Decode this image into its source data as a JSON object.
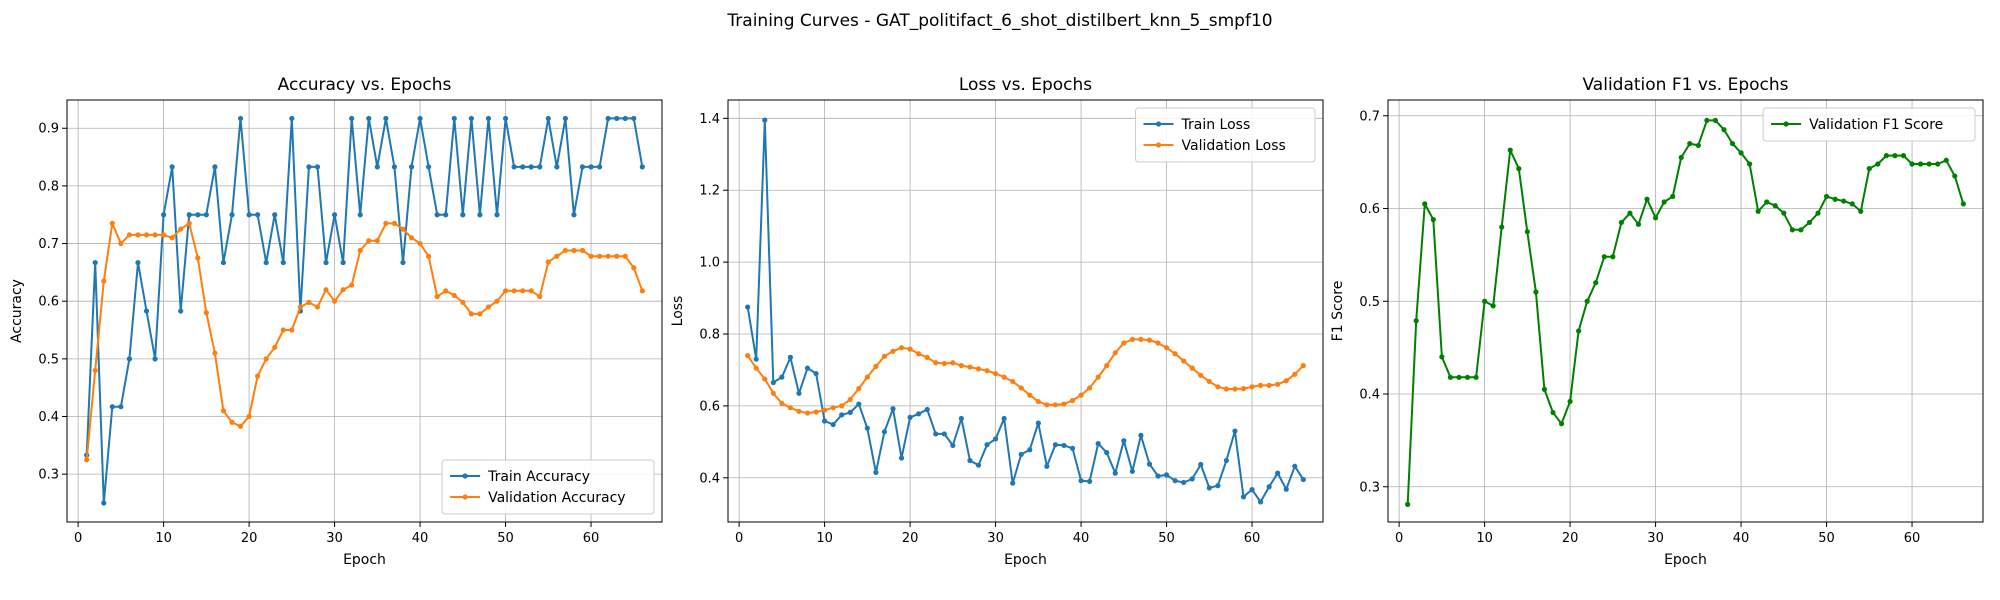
{
  "figure": {
    "title": "Training Curves - GAT_politifact_6_shot_distilbert_knn_5_smpf10"
  },
  "colors": {
    "train": "#1f77b4",
    "validation": "#ff7f0e",
    "f1": "#008000",
    "grid": "#b0b0b0"
  },
  "chart_data": [
    {
      "type": "line",
      "title": "Accuracy vs. Epochs",
      "xlabel": "Epoch",
      "ylabel": "Accuracy",
      "xlim": [
        -1.3,
        68.3
      ],
      "ylim": [
        0.217,
        0.949
      ],
      "xticks": [
        0,
        10,
        20,
        30,
        40,
        50,
        60
      ],
      "yticks": [
        0.3,
        0.4,
        0.5,
        0.6,
        0.7,
        0.8,
        0.9
      ],
      "grid": true,
      "legend": "lower right",
      "x": [
        1,
        2,
        3,
        4,
        5,
        6,
        7,
        8,
        9,
        10,
        11,
        12,
        13,
        14,
        15,
        16,
        17,
        18,
        19,
        20,
        21,
        22,
        23,
        24,
        25,
        26,
        27,
        28,
        29,
        30,
        31,
        32,
        33,
        34,
        35,
        36,
        37,
        38,
        39,
        40,
        41,
        42,
        43,
        44,
        45,
        46,
        47,
        48,
        49,
        50,
        51,
        52,
        53,
        54,
        55,
        56,
        57,
        58,
        59,
        60,
        61,
        62,
        63,
        64,
        65,
        66
      ],
      "series": [
        {
          "name": "Train Accuracy",
          "color": "#1f77b4",
          "values": [
            0.333,
            0.667,
            0.25,
            0.417,
            0.417,
            0.5,
            0.667,
            0.583,
            0.5,
            0.75,
            0.833,
            0.583,
            0.75,
            0.75,
            0.75,
            0.833,
            0.667,
            0.75,
            0.917,
            0.75,
            0.75,
            0.667,
            0.75,
            0.667,
            0.917,
            0.583,
            0.833,
            0.833,
            0.667,
            0.75,
            0.667,
            0.917,
            0.75,
            0.917,
            0.833,
            0.917,
            0.833,
            0.667,
            0.833,
            0.917,
            0.833,
            0.75,
            0.75,
            0.917,
            0.75,
            0.917,
            0.75,
            0.917,
            0.75,
            0.917,
            0.833,
            0.833,
            0.833,
            0.833,
            0.917,
            0.833,
            0.917,
            0.75,
            0.833,
            0.833,
            0.833,
            0.917,
            0.917,
            0.917,
            0.917,
            0.833
          ]
        },
        {
          "name": "Validation Accuracy",
          "color": "#ff7f0e",
          "values": [
            0.325,
            0.48,
            0.635,
            0.735,
            0.7,
            0.715,
            0.715,
            0.715,
            0.715,
            0.715,
            0.71,
            0.725,
            0.735,
            0.675,
            0.58,
            0.51,
            0.41,
            0.39,
            0.383,
            0.4,
            0.47,
            0.5,
            0.52,
            0.55,
            0.55,
            0.59,
            0.598,
            0.59,
            0.62,
            0.6,
            0.62,
            0.628,
            0.688,
            0.705,
            0.705,
            0.735,
            0.735,
            0.725,
            0.71,
            0.7,
            0.678,
            0.608,
            0.618,
            0.61,
            0.598,
            0.578,
            0.578,
            0.59,
            0.6,
            0.618,
            0.618,
            0.618,
            0.618,
            0.608,
            0.668,
            0.678,
            0.688,
            0.688,
            0.688,
            0.678,
            0.678,
            0.678,
            0.678,
            0.678,
            0.658,
            0.618
          ]
        }
      ]
    },
    {
      "type": "line",
      "title": "Loss vs. Epochs",
      "xlabel": "Epoch",
      "ylabel": "Loss",
      "xlim": [
        -1.3,
        68.3
      ],
      "ylim": [
        0.277,
        1.451
      ],
      "xticks": [
        0,
        10,
        20,
        30,
        40,
        50,
        60
      ],
      "yticks": [
        0.4,
        0.6,
        0.8,
        1.0,
        1.2,
        1.4
      ],
      "ytick_labels": [
        "0.4",
        "0.6",
        "0.8",
        "1.0",
        "1.2",
        "1.4"
      ],
      "grid": true,
      "legend": "upper right",
      "x": [
        1,
        2,
        3,
        4,
        5,
        6,
        7,
        8,
        9,
        10,
        11,
        12,
        13,
        14,
        15,
        16,
        17,
        18,
        19,
        20,
        21,
        22,
        23,
        24,
        25,
        26,
        27,
        28,
        29,
        30,
        31,
        32,
        33,
        34,
        35,
        36,
        37,
        38,
        39,
        40,
        41,
        42,
        43,
        44,
        45,
        46,
        47,
        48,
        49,
        50,
        51,
        52,
        53,
        54,
        55,
        56,
        57,
        58,
        59,
        60,
        61,
        62,
        63,
        64,
        65,
        66
      ],
      "series": [
        {
          "name": "Train Loss",
          "color": "#1f77b4",
          "values": [
            0.875,
            0.73,
            1.395,
            0.665,
            0.68,
            0.735,
            0.635,
            0.705,
            0.69,
            0.558,
            0.548,
            0.575,
            0.582,
            0.605,
            0.538,
            0.415,
            0.528,
            0.592,
            0.455,
            0.568,
            0.578,
            0.59,
            0.522,
            0.522,
            0.49,
            0.565,
            0.448,
            0.435,
            0.492,
            0.508,
            0.565,
            0.385,
            0.465,
            0.478,
            0.552,
            0.432,
            0.492,
            0.49,
            0.482,
            0.392,
            0.39,
            0.495,
            0.47,
            0.413,
            0.503,
            0.418,
            0.518,
            0.438,
            0.405,
            0.408,
            0.392,
            0.387,
            0.397,
            0.437,
            0.372,
            0.378,
            0.448,
            0.53,
            0.347,
            0.367,
            0.333,
            0.375,
            0.413,
            0.368,
            0.432,
            0.395
          ]
        },
        {
          "name": "Validation Loss",
          "color": "#ff7f0e",
          "values": [
            0.74,
            0.705,
            0.675,
            0.635,
            0.607,
            0.595,
            0.585,
            0.58,
            0.583,
            0.588,
            0.595,
            0.6,
            0.618,
            0.648,
            0.68,
            0.71,
            0.738,
            0.752,
            0.762,
            0.758,
            0.745,
            0.735,
            0.72,
            0.718,
            0.72,
            0.712,
            0.708,
            0.703,
            0.698,
            0.69,
            0.68,
            0.668,
            0.65,
            0.63,
            0.612,
            0.603,
            0.603,
            0.605,
            0.615,
            0.63,
            0.65,
            0.68,
            0.712,
            0.748,
            0.775,
            0.785,
            0.785,
            0.783,
            0.775,
            0.762,
            0.745,
            0.725,
            0.705,
            0.685,
            0.668,
            0.653,
            0.647,
            0.647,
            0.648,
            0.653,
            0.657,
            0.657,
            0.66,
            0.67,
            0.688,
            0.712
          ]
        }
      ]
    },
    {
      "type": "line",
      "title": "Validation F1 vs. Epochs",
      "xlabel": "Epoch",
      "ylabel": "F1 Score",
      "xlim": [
        -1.3,
        68.3
      ],
      "ylim": [
        0.262,
        0.717
      ],
      "xticks": [
        0,
        10,
        20,
        30,
        40,
        50,
        60
      ],
      "yticks": [
        0.3,
        0.4,
        0.5,
        0.6,
        0.7
      ],
      "grid": true,
      "legend": "upper right",
      "x": [
        1,
        2,
        3,
        4,
        5,
        6,
        7,
        8,
        9,
        10,
        11,
        12,
        13,
        14,
        15,
        16,
        17,
        18,
        19,
        20,
        21,
        22,
        23,
        24,
        25,
        26,
        27,
        28,
        29,
        30,
        31,
        32,
        33,
        34,
        35,
        36,
        37,
        38,
        39,
        40,
        41,
        42,
        43,
        44,
        45,
        46,
        47,
        48,
        49,
        50,
        51,
        52,
        53,
        54,
        55,
        56,
        57,
        58,
        59,
        60,
        61,
        62,
        63,
        64,
        65,
        66
      ],
      "series": [
        {
          "name": "Validation F1 Score",
          "color": "#008000",
          "values": [
            0.281,
            0.479,
            0.605,
            0.588,
            0.44,
            0.418,
            0.418,
            0.418,
            0.418,
            0.5,
            0.495,
            0.58,
            0.663,
            0.643,
            0.575,
            0.51,
            0.405,
            0.38,
            0.368,
            0.392,
            0.468,
            0.5,
            0.52,
            0.548,
            0.548,
            0.585,
            0.595,
            0.583,
            0.61,
            0.59,
            0.607,
            0.613,
            0.655,
            0.67,
            0.668,
            0.695,
            0.695,
            0.685,
            0.67,
            0.66,
            0.648,
            0.597,
            0.607,
            0.603,
            0.595,
            0.577,
            0.577,
            0.585,
            0.595,
            0.613,
            0.61,
            0.608,
            0.605,
            0.597,
            0.643,
            0.648,
            0.657,
            0.657,
            0.657,
            0.648,
            0.648,
            0.648,
            0.648,
            0.652,
            0.635,
            0.605
          ]
        }
      ]
    }
  ]
}
